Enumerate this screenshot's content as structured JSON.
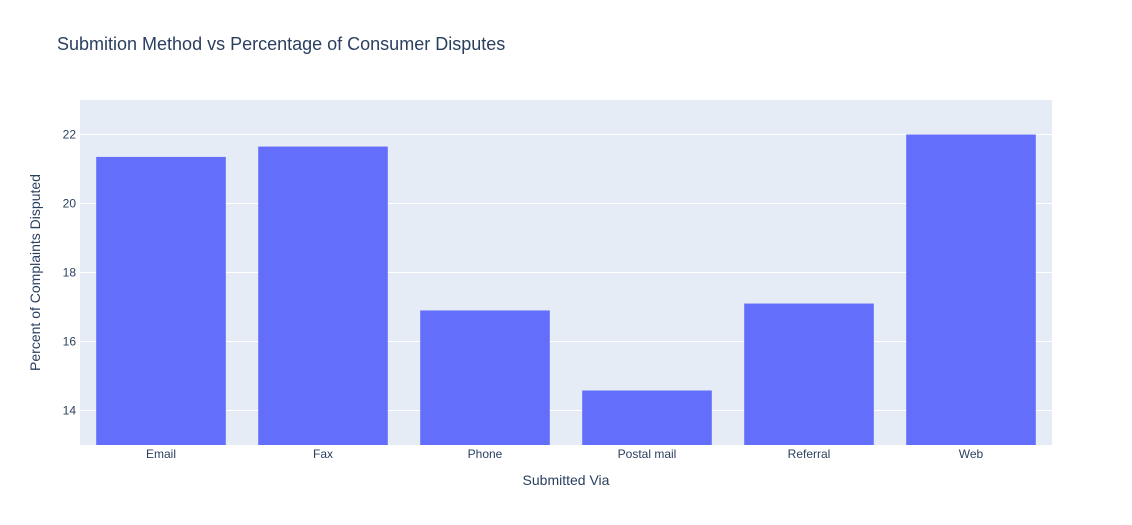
{
  "chart_data": {
    "type": "bar",
    "title": "Submition Method vs Percentage of Consumer Disputes",
    "xlabel": "Submitted Via",
    "ylabel": "Percent of Complaints Disputed",
    "categories": [
      "Email",
      "Fax",
      "Phone",
      "Postal mail",
      "Referral",
      "Web"
    ],
    "values": [
      21.35,
      21.65,
      16.9,
      14.58,
      17.1,
      22.0
    ],
    "ylim": [
      13,
      23
    ],
    "yticks": [
      14,
      16,
      18,
      20,
      22
    ],
    "grid": true,
    "colors": {
      "bar": "#636efa",
      "plot_bg": "#e5ecf6",
      "grid": "#ffffff",
      "text": "#2a3f5f"
    }
  }
}
